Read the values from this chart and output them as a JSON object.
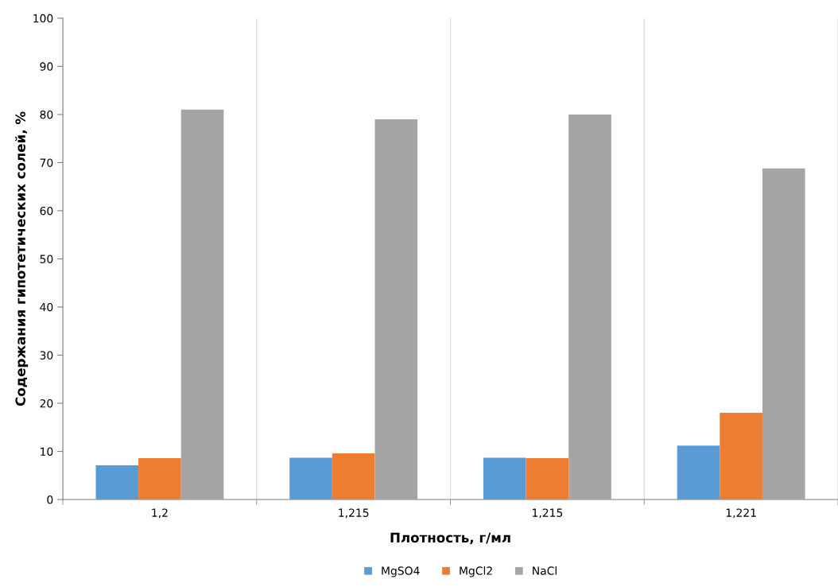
{
  "chart_data": {
    "type": "bar",
    "xlabel": "Плотность, г/мл",
    "ylabel": "Содержания гипотетических солей, %",
    "categories": [
      "1,2",
      "1,215",
      "1,215",
      "1,221"
    ],
    "series": [
      {
        "name": "MgSO4",
        "color": "#5b9bd5",
        "values": [
          7.1,
          8.7,
          8.7,
          11.2
        ]
      },
      {
        "name": "MgCl2",
        "color": "#ed7d31",
        "values": [
          8.6,
          9.6,
          8.6,
          18.0
        ]
      },
      {
        "name": "NaCl",
        "color": "#a5a5a5",
        "values": [
          81.0,
          79.0,
          80.0,
          68.8
        ]
      }
    ],
    "ylim": [
      0,
      100
    ],
    "yticks": [
      0,
      10,
      20,
      30,
      40,
      50,
      60,
      70,
      80,
      90,
      100
    ],
    "grid": "x",
    "legend": "bottom"
  }
}
